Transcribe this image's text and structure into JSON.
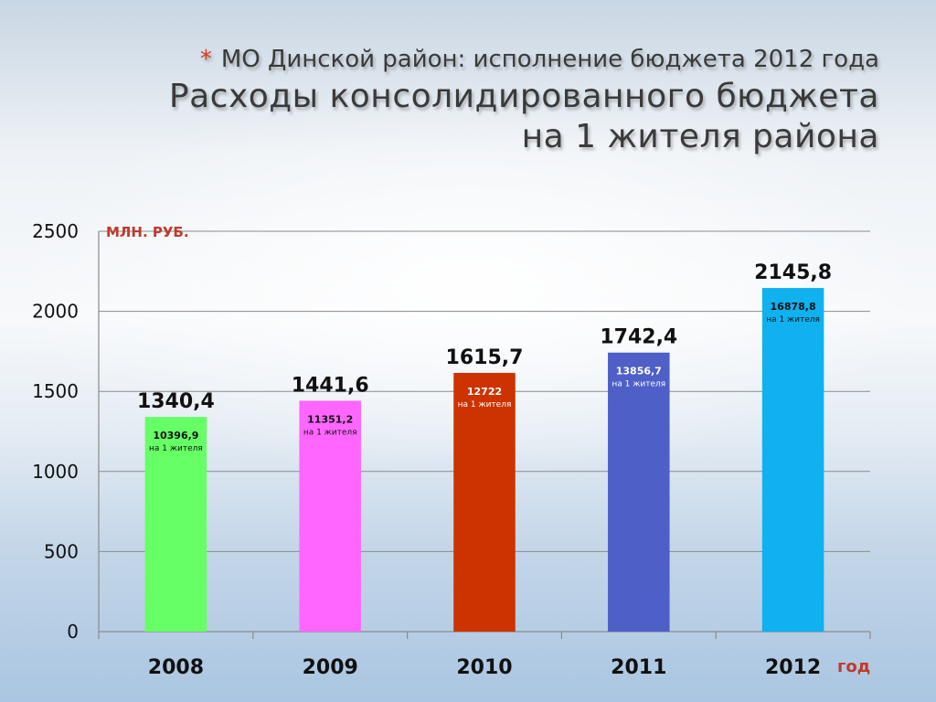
{
  "header": {
    "bullet": "*",
    "line1": "МО Динской район: исполнение бюджета 2012 года",
    "line2": "Расходы консолидированного бюджета",
    "line3": "на 1 жителя района"
  },
  "chart_data": {
    "type": "bar",
    "categories": [
      "2008",
      "2009",
      "2010",
      "2011",
      "2012"
    ],
    "values": [
      1340.4,
      1441.6,
      1615.7,
      1742.4,
      2145.8
    ],
    "value_labels": [
      "1340,4",
      "1441,6",
      "1615,7",
      "1742,4",
      "2145,8"
    ],
    "per_capita_labels": [
      "10396,9",
      "11351,2",
      "12722",
      "13856,7",
      "16878,8"
    ],
    "per_capita_caption": "на 1 жителя",
    "colors": [
      "#66ff66",
      "#ff66ff",
      "#cc3300",
      "#4e5fc8",
      "#0fb1ef"
    ],
    "inner_text_colors": [
      "#111111",
      "#111111",
      "#ffffff",
      "#ffffff",
      "#111111"
    ],
    "ylim": [
      0,
      2500
    ],
    "yticks": [
      0,
      500,
      1000,
      1500,
      2000,
      2500
    ],
    "ylabel": "МЛН. РУБ.",
    "xlabel": "год",
    "grid": true
  }
}
